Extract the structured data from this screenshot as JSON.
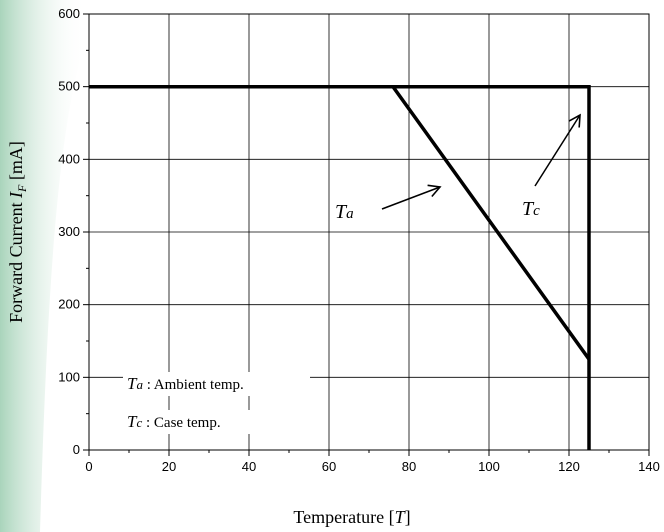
{
  "chart_data": {
    "type": "line",
    "xlabel": "Temperature [T]",
    "ylabel": "Forward Current  I_F [mA]",
    "xlim": [
      0,
      140
    ],
    "ylim": [
      0,
      600
    ],
    "xticks": [
      0,
      20,
      40,
      60,
      80,
      100,
      120,
      140
    ],
    "yticks": [
      0,
      100,
      200,
      300,
      400,
      500,
      600
    ],
    "grid": true,
    "series": [
      {
        "name": "Tc",
        "x": [
          0,
          125,
          125
        ],
        "y": [
          500,
          500,
          0
        ]
      },
      {
        "name": "Ta",
        "x": [
          0,
          76,
          125
        ],
        "y": [
          500,
          500,
          125
        ]
      }
    ],
    "annotations": [
      {
        "id": "ta-pointer",
        "label_main": "T",
        "label_sub": "a"
      },
      {
        "id": "tc-pointer",
        "label_main": "T",
        "label_sub": "c"
      }
    ],
    "notes": [
      {
        "main": "T",
        "sub": "a",
        "text": " : Ambient temp."
      },
      {
        "main": "T",
        "sub": "c",
        "text": " : Case temp."
      }
    ],
    "colors": {
      "line": "#000000",
      "grid": "#000000",
      "side_strip": "#b9dcc6"
    }
  }
}
